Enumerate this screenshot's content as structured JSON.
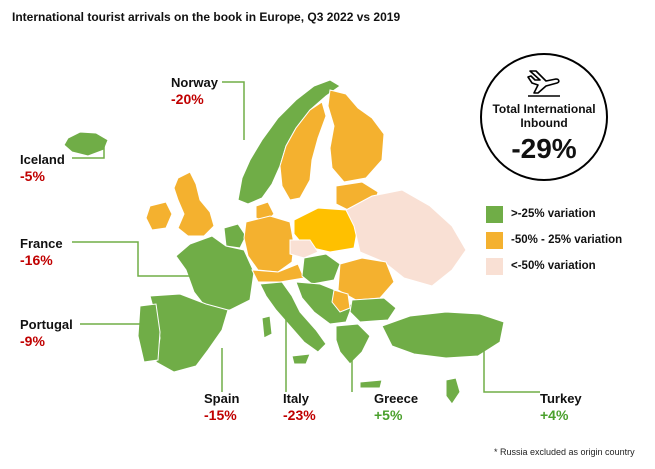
{
  "title": "International tourist arrivals on the book in Europe, Q3 2022 vs 2019",
  "colors": {
    "green": "#70ad47",
    "orange": "#f4b12f",
    "yellow": "#ffc000",
    "peach": "#f9e0d4"
  },
  "total": {
    "icon": "airplane-arrival-icon",
    "label_line1": "Total International",
    "label_line2": "Inbound",
    "value": "-29%"
  },
  "legend": [
    {
      "label": ">-25% variation",
      "color": "#70ad47"
    },
    {
      "label": "-50% - 25%  variation",
      "color": "#f4b12f"
    },
    {
      "label": "<-50% variation",
      "color": "#f9e0d4"
    }
  ],
  "countries": {
    "norway": {
      "name": "Norway",
      "value": "-20%"
    },
    "iceland": {
      "name": "Iceland",
      "value": "-5%"
    },
    "france": {
      "name": "France",
      "value": "-16%"
    },
    "portugal": {
      "name": "Portugal",
      "value": "-9%"
    },
    "spain": {
      "name": "Spain",
      "value": "-15%"
    },
    "italy": {
      "name": "Italy",
      "value": "-23%"
    },
    "greece": {
      "name": "Greece",
      "value": "+5%"
    },
    "turkey": {
      "name": "Turkey",
      "value": "+4%"
    }
  },
  "footnote": "* Russia excluded as origin country"
}
